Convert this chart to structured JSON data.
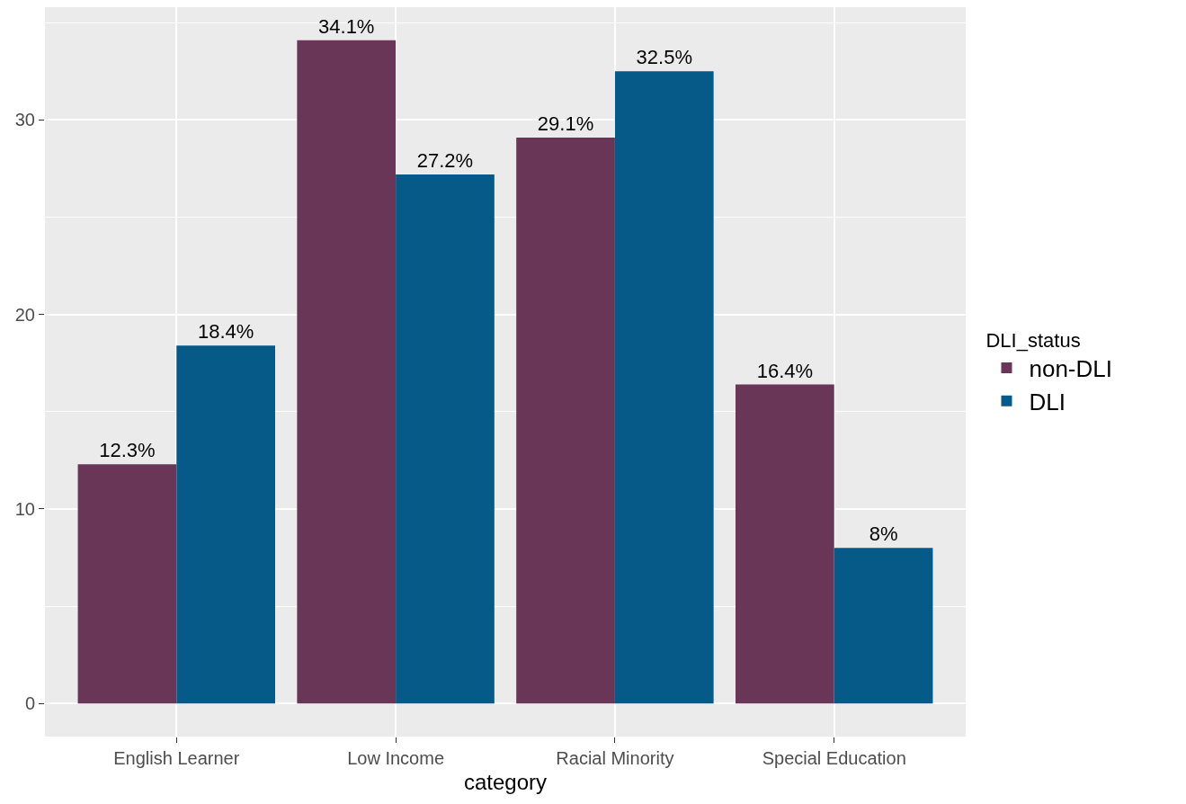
{
  "chart_data": {
    "type": "bar",
    "xlabel": "category",
    "legend_title": "DLI_status",
    "categories": [
      "English Learner",
      "Low Income",
      "Racial Minority",
      "Special Education"
    ],
    "series": [
      {
        "name": "non-DLI",
        "color": "#693657",
        "values": [
          12.3,
          34.1,
          29.1,
          16.4
        ],
        "value_labels": [
          "12.3%",
          "34.1%",
          "29.1%",
          "16.4%"
        ]
      },
      {
        "name": "DLI",
        "color": "#065a87",
        "values": [
          18.4,
          27.2,
          32.5,
          8
        ],
        "value_labels": [
          "18.4%",
          "27.2%",
          "32.5%",
          "8%"
        ]
      }
    ],
    "ylim": [
      -1.7,
      35.8
    ],
    "yticks": [
      0,
      {
        "value": 5,
        "label": null
      },
      10,
      {
        "value": 15,
        "label": null
      },
      20,
      {
        "value": 25,
        "label": null
      },
      30,
      {
        "value": 35,
        "label": null
      }
    ],
    "grid": true,
    "legend": "right"
  }
}
